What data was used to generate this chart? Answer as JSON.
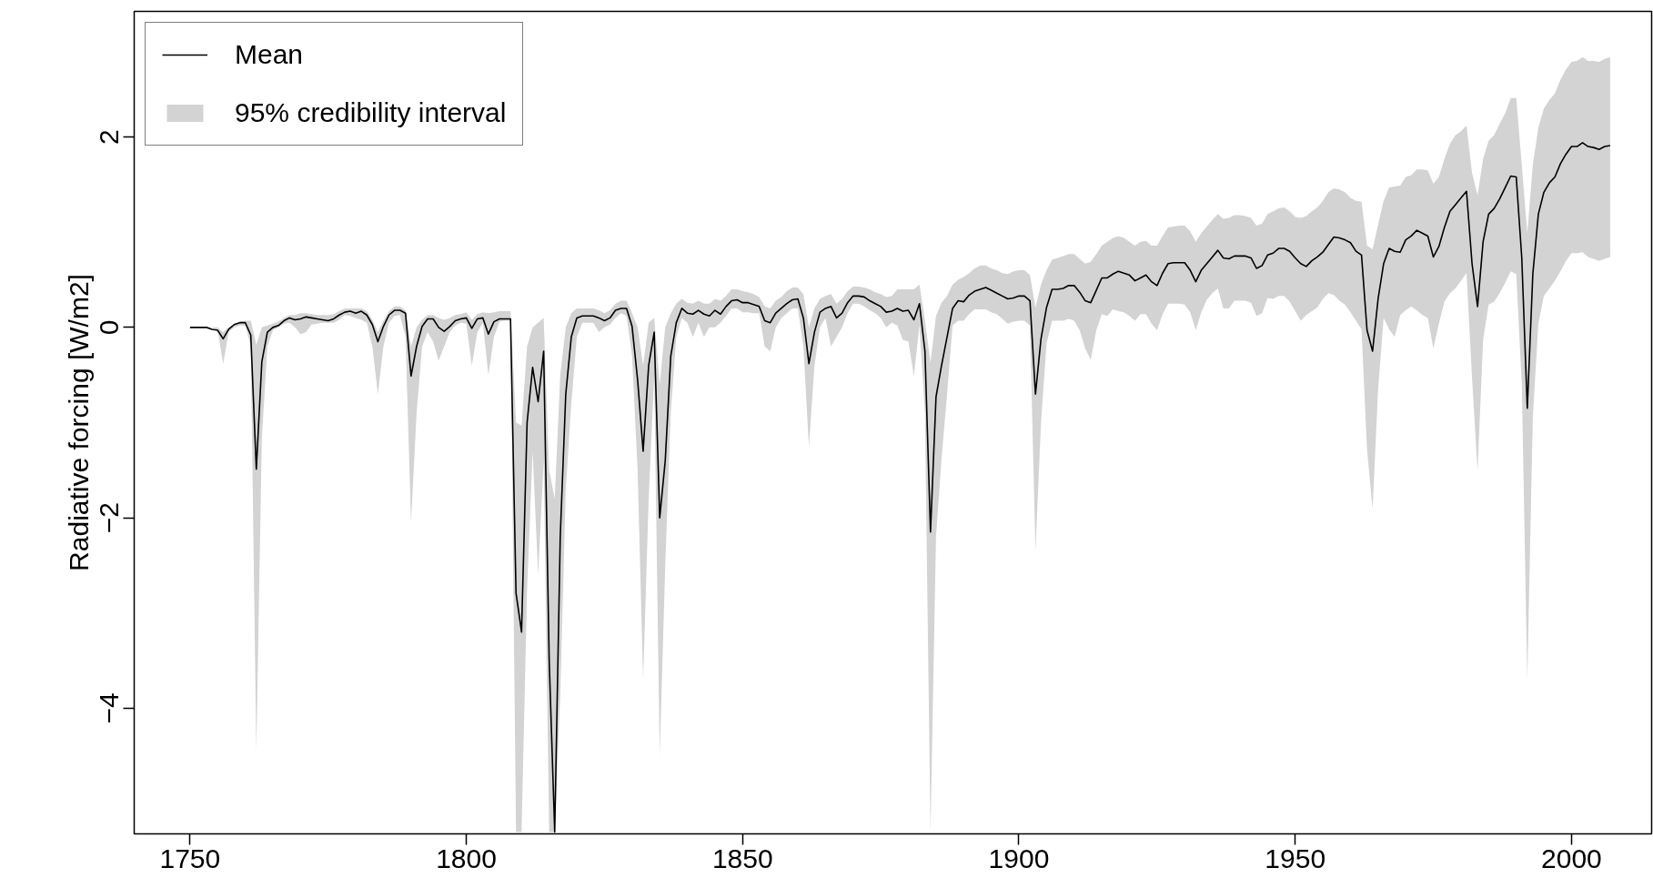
{
  "chart_data": {
    "type": "line",
    "ylabel": "Radiative forcing [W/m2]",
    "xlim": [
      1739.9,
      2014.5
    ],
    "ylim": [
      -5.32,
      3.32
    ],
    "xticks": [
      1750,
      1800,
      1850,
      1900,
      1950,
      2000
    ],
    "yticks": [
      {
        "value": -4,
        "label": "−4"
      },
      {
        "value": -2,
        "label": "−2"
      },
      0,
      2
    ],
    "grid": false,
    "legend": "top left",
    "marker": "none",
    "line_style": "solid",
    "x": [
      1750,
      1751,
      1752,
      1753,
      1754,
      1755,
      1756,
      1757,
      1758,
      1759,
      1760,
      1761,
      1762,
      1763,
      1764,
      1765,
      1766,
      1767,
      1768,
      1769,
      1770,
      1771,
      1772,
      1773,
      1774,
      1775,
      1776,
      1777,
      1778,
      1779,
      1780,
      1781,
      1782,
      1783,
      1784,
      1785,
      1786,
      1787,
      1788,
      1789,
      1790,
      1791,
      1792,
      1793,
      1794,
      1795,
      1796,
      1797,
      1798,
      1799,
      1800,
      1801,
      1802,
      1803,
      1804,
      1805,
      1806,
      1807,
      1808,
      1809,
      1810,
      1811,
      1812,
      1813,
      1814,
      1815,
      1816,
      1817,
      1818,
      1819,
      1820,
      1821,
      1822,
      1823,
      1824,
      1825,
      1826,
      1827,
      1828,
      1829,
      1830,
      1831,
      1832,
      1833,
      1834,
      1835,
      1836,
      1837,
      1838,
      1839,
      1840,
      1841,
      1842,
      1843,
      1844,
      1845,
      1846,
      1847,
      1848,
      1849,
      1850,
      1851,
      1852,
      1853,
      1854,
      1855,
      1856,
      1857,
      1858,
      1859,
      1860,
      1861,
      1862,
      1863,
      1864,
      1865,
      1866,
      1867,
      1868,
      1869,
      1870,
      1871,
      1872,
      1873,
      1874,
      1875,
      1876,
      1877,
      1878,
      1879,
      1880,
      1881,
      1882,
      1883,
      1884,
      1885,
      1886,
      1887,
      1888,
      1889,
      1890,
      1891,
      1892,
      1893,
      1894,
      1895,
      1896,
      1897,
      1898,
      1899,
      1900,
      1901,
      1902,
      1903,
      1904,
      1905,
      1906,
      1907,
      1908,
      1909,
      1910,
      1911,
      1912,
      1913,
      1914,
      1915,
      1916,
      1917,
      1918,
      1919,
      1920,
      1921,
      1922,
      1923,
      1924,
      1925,
      1926,
      1927,
      1928,
      1929,
      1930,
      1931,
      1932,
      1933,
      1934,
      1935,
      1936,
      1937,
      1938,
      1939,
      1940,
      1941,
      1942,
      1943,
      1944,
      1945,
      1946,
      1947,
      1948,
      1949,
      1950,
      1951,
      1952,
      1953,
      1954,
      1955,
      1956,
      1957,
      1958,
      1959,
      1960,
      1961,
      1962,
      1963,
      1964,
      1965,
      1966,
      1967,
      1968,
      1969,
      1970,
      1971,
      1972,
      1973,
      1974,
      1975,
      1976,
      1977,
      1978,
      1979,
      1980,
      1981,
      1982,
      1983,
      1984,
      1985,
      1986,
      1987,
      1988,
      1989,
      1990,
      1991,
      1992,
      1993,
      1994,
      1995,
      1996,
      1997,
      1998,
      1999,
      2000,
      2001,
      2002,
      2003,
      2004,
      2005,
      2006,
      2007
    ],
    "series": [
      {
        "name": "Mean",
        "color": "#000000",
        "values": [
          0,
          0,
          0,
          0,
          -0.02,
          -0.03,
          -0.12,
          -0.02,
          0.03,
          0.05,
          0.05,
          -0.08,
          -1.49,
          -0.36,
          -0.05,
          0,
          0.02,
          0.07,
          0.1,
          0.08,
          0.09,
          0.11,
          0.1,
          0.09,
          0.08,
          0.07,
          0.09,
          0.13,
          0.16,
          0.17,
          0.15,
          0.17,
          0.13,
          0.03,
          -0.15,
          0.01,
          0.13,
          0.18,
          0.18,
          0.15,
          -0.51,
          -0.2,
          0.01,
          0.09,
          0.09,
          0,
          -0.04,
          0.01,
          0.07,
          0.09,
          0.1,
          -0.01,
          0.09,
          0.1,
          -0.07,
          0.06,
          0.09,
          0.09,
          0.09,
          -2.79,
          -3.2,
          -1.0,
          -0.42,
          -0.78,
          -0.25,
          -3.5,
          -5.3,
          -2.2,
          -0.7,
          -0.1,
          0.1,
          0.12,
          0.12,
          0.12,
          0.1,
          0.07,
          0.1,
          0.18,
          0.2,
          0.2,
          0.01,
          -0.55,
          -1.3,
          -0.4,
          -0.05,
          -2.0,
          -1.4,
          -0.3,
          0.05,
          0.2,
          0.15,
          0.14,
          0.18,
          0.14,
          0.12,
          0.18,
          0.14,
          0.22,
          0.28,
          0.29,
          0.26,
          0.26,
          0.24,
          0.22,
          0.07,
          0.05,
          0.15,
          0.2,
          0.25,
          0.29,
          0.3,
          0.1,
          -0.38,
          -0.05,
          0.16,
          0.2,
          0.22,
          0.1,
          0.15,
          0.26,
          0.33,
          0.33,
          0.32,
          0.28,
          0.25,
          0.22,
          0.16,
          0.17,
          0.2,
          0.17,
          0.18,
          0.08,
          0.25,
          -0.25,
          -2.15,
          -0.73,
          -0.4,
          -0.1,
          0.2,
          0.28,
          0.27,
          0.34,
          0.38,
          0.4,
          0.42,
          0.39,
          0.36,
          0.33,
          0.3,
          0.31,
          0.33,
          0.33,
          0.28,
          -0.7,
          -0.12,
          0.21,
          0.4,
          0.4,
          0.41,
          0.44,
          0.44,
          0.37,
          0.28,
          0.26,
          0.39,
          0.52,
          0.52,
          0.56,
          0.59,
          0.57,
          0.55,
          0.49,
          0.52,
          0.55,
          0.48,
          0.44,
          0.57,
          0.67,
          0.68,
          0.68,
          0.68,
          0.6,
          0.48,
          0.6,
          0.67,
          0.74,
          0.81,
          0.73,
          0.72,
          0.75,
          0.75,
          0.75,
          0.73,
          0.62,
          0.65,
          0.76,
          0.78,
          0.83,
          0.83,
          0.8,
          0.73,
          0.67,
          0.64,
          0.7,
          0.74,
          0.79,
          0.87,
          0.95,
          0.94,
          0.92,
          0.89,
          0.8,
          0.76,
          -0.03,
          -0.25,
          0.3,
          0.67,
          0.83,
          0.8,
          0.79,
          0.92,
          0.96,
          1.02,
          0.99,
          0.96,
          0.74,
          0.85,
          1.05,
          1.22,
          1.29,
          1.36,
          1.43,
          0.67,
          0.22,
          0.9,
          1.19,
          1.25,
          1.35,
          1.47,
          1.59,
          1.58,
          0.73,
          -0.85,
          0.56,
          1.19,
          1.42,
          1.52,
          1.58,
          1.72,
          1.82,
          1.9,
          1.9,
          1.94,
          1.9,
          1.89,
          1.87,
          1.9,
          1.91
        ]
      },
      {
        "name": "95% credibility interval",
        "type": "area",
        "color": "#d3d3d3",
        "values": [
          null,
          null,
          null,
          null,
          null,
          null,
          null,
          null,
          null,
          null,
          null,
          null,
          null,
          null,
          null,
          null,
          null,
          null,
          null,
          null,
          null,
          null,
          null,
          null,
          null,
          null,
          null,
          null,
          null,
          null,
          null,
          null,
          null,
          null,
          null,
          null,
          null,
          null,
          null,
          null,
          null,
          null,
          null,
          null,
          null,
          null,
          null,
          null,
          null,
          null,
          null,
          null,
          null,
          null,
          null,
          null,
          null,
          null,
          null,
          null,
          null,
          null,
          null,
          null,
          null,
          null,
          null,
          null,
          null,
          null,
          null,
          null,
          null,
          null,
          null,
          null,
          null,
          null,
          null,
          null,
          null,
          null,
          null,
          null,
          null,
          null,
          null,
          null,
          null,
          null,
          null,
          null,
          null,
          null,
          null,
          null,
          null,
          null,
          null,
          null,
          null,
          null,
          null,
          null,
          null,
          null,
          null,
          null,
          null,
          null,
          null,
          null,
          null,
          null,
          null,
          null,
          null,
          null,
          null,
          null,
          null,
          null,
          null,
          null,
          null,
          null,
          null,
          null,
          null,
          null,
          null,
          null,
          null,
          null,
          null,
          null,
          null,
          null,
          null,
          null,
          null,
          null,
          null,
          null,
          null,
          null,
          null,
          null,
          null,
          null,
          null,
          null,
          null,
          null,
          null,
          null,
          null,
          null,
          null,
          null,
          null,
          null,
          null,
          null,
          null,
          null,
          null,
          null,
          null,
          null,
          null,
          null,
          null,
          null,
          null,
          null,
          null,
          null,
          null,
          null,
          null,
          null,
          null,
          null,
          null,
          null,
          null,
          null,
          null,
          null,
          null,
          null,
          null,
          null,
          null,
          null,
          null,
          null,
          null,
          null,
          null,
          null,
          null,
          null,
          null,
          null,
          null,
          null,
          null,
          null,
          null,
          null,
          null,
          null,
          null,
          null,
          null,
          null,
          null,
          null,
          null,
          null,
          null,
          null,
          null,
          null,
          null,
          null,
          null,
          null,
          null,
          null,
          null,
          null,
          null,
          null,
          null,
          null,
          null,
          null,
          null,
          null,
          null,
          null,
          null,
          null,
          null,
          null,
          null,
          null,
          null,
          null,
          null,
          null,
          null,
          null,
          null,
          null
        ],
        "upper": [
          0,
          0,
          0,
          0,
          0,
          0,
          -0.05,
          0,
          0.04,
          0.06,
          0.07,
          0.07,
          -0.18,
          0,
          0.02,
          0.04,
          0.06,
          0.1,
          0.13,
          0.13,
          0.15,
          0.15,
          0.14,
          0.13,
          0.13,
          0.13,
          0.14,
          0.17,
          0.2,
          0.2,
          0.2,
          0.2,
          0.17,
          0.08,
          -0.05,
          0.07,
          0.17,
          0.22,
          0.22,
          0.18,
          -0.2,
          0,
          0.08,
          0.13,
          0.13,
          0.1,
          0.08,
          0.1,
          0.13,
          0.14,
          0.16,
          0.08,
          0.14,
          0.16,
          0.15,
          0.16,
          0.17,
          0.17,
          0.17,
          -1.0,
          -1.03,
          -0.2,
          0,
          0.05,
          0.1,
          -1.5,
          -1.8,
          -0.5,
          0,
          0.15,
          0.2,
          0.2,
          0.2,
          0.2,
          0.18,
          0.15,
          0.18,
          0.25,
          0.28,
          0.28,
          0.15,
          0,
          -0.4,
          0.05,
          0.1,
          -0.6,
          0,
          0.15,
          0.25,
          0.3,
          0.26,
          0.25,
          0.28,
          0.25,
          0.25,
          0.3,
          0.28,
          0.33,
          0.4,
          0.4,
          0.38,
          0.37,
          0.35,
          0.32,
          0.22,
          0.2,
          0.28,
          0.32,
          0.38,
          0.42,
          0.42,
          0.35,
          0,
          0.2,
          0.3,
          0.33,
          0.35,
          0.25,
          0.3,
          0.38,
          0.43,
          0.43,
          0.42,
          0.4,
          0.37,
          0.35,
          0.32,
          0.33,
          0.4,
          0.4,
          0.4,
          0.4,
          0.45,
          0.07,
          -0.37,
          0.12,
          0.26,
          0.33,
          0.45,
          0.5,
          0.53,
          0.57,
          0.62,
          0.65,
          0.65,
          0.62,
          0.6,
          0.57,
          0.56,
          0.59,
          0.6,
          0.6,
          0.55,
          0.21,
          0.45,
          0.6,
          0.71,
          0.73,
          0.75,
          0.77,
          0.77,
          0.72,
          0.67,
          0.69,
          0.77,
          0.86,
          0.9,
          0.94,
          0.96,
          0.94,
          0.9,
          0.86,
          0.9,
          0.91,
          0.86,
          0.86,
          0.96,
          1.05,
          1.06,
          1.07,
          1.07,
          1.01,
          0.9,
          0.99,
          1.06,
          1.13,
          1.19,
          1.14,
          1.15,
          1.18,
          1.18,
          1.17,
          1.15,
          1.07,
          1.09,
          1.19,
          1.22,
          1.25,
          1.26,
          1.22,
          1.16,
          1.15,
          1.17,
          1.22,
          1.26,
          1.33,
          1.42,
          1.46,
          1.45,
          1.42,
          1.36,
          1.33,
          1.32,
          0.86,
          0.82,
          1.08,
          1.33,
          1.47,
          1.48,
          1.49,
          1.58,
          1.6,
          1.66,
          1.66,
          1.65,
          1.51,
          1.58,
          1.77,
          1.93,
          2.02,
          2.06,
          2.12,
          1.62,
          1.39,
          1.77,
          1.96,
          2.02,
          2.14,
          2.25,
          2.41,
          2.41,
          1.71,
          0.99,
          1.71,
          2.1,
          2.3,
          2.39,
          2.46,
          2.6,
          2.71,
          2.79,
          2.8,
          2.84,
          2.8,
          2.8,
          2.79,
          2.82,
          2.84
        ],
        "lower": [
          0,
          0,
          0,
          0,
          0,
          -0.03,
          -0.38,
          -0.05,
          0,
          0.02,
          0.02,
          -0.2,
          -4.45,
          -1.17,
          -0.2,
          -0.03,
          0,
          0.04,
          0.05,
          0,
          -0.07,
          -0.05,
          0.03,
          0.04,
          0.05,
          0.05,
          0.05,
          0.08,
          0.13,
          0.12,
          0.1,
          0.08,
          0.05,
          -0.2,
          -0.7,
          -0.2,
          0.05,
          0.12,
          0.13,
          -0.1,
          -2.05,
          -0.9,
          -0.2,
          -0.05,
          -0.15,
          -0.35,
          -0.2,
          -0.05,
          0.02,
          0.05,
          0.04,
          -0.4,
          -0.05,
          0.05,
          -0.5,
          -0.1,
          0.06,
          0.07,
          0.07,
          -5.3,
          -5.3,
          -2.75,
          -1.3,
          -2.6,
          -1.4,
          -5.3,
          -5.3,
          -3.86,
          -1.7,
          -0.8,
          -0.1,
          0.05,
          0.05,
          0.05,
          -0.05,
          0,
          0.03,
          0.1,
          0.15,
          0.12,
          -0.3,
          -1.5,
          -3.7,
          -1.8,
          -0.5,
          -4.5,
          -2.5,
          -0.9,
          -0.1,
          0.1,
          0.05,
          -0.1,
          0.05,
          -0.1,
          0,
          0,
          0.05,
          0.12,
          0.2,
          0.2,
          0.16,
          0.16,
          0.15,
          0.15,
          -0.2,
          -0.25,
          0,
          0.1,
          0.15,
          0.2,
          0.2,
          -0.2,
          -1.25,
          -0.4,
          0,
          0.1,
          -0.2,
          -0.1,
          0,
          0.15,
          0.25,
          0.25,
          0.22,
          0.18,
          0.15,
          0.1,
          0,
          0.05,
          0.02,
          -0.13,
          -0.15,
          -0.51,
          0.02,
          -0.9,
          -5.3,
          -2.2,
          -1.38,
          -0.7,
          0.02,
          0.07,
          0.07,
          0.14,
          0.19,
          0.19,
          0.19,
          0.16,
          0.14,
          0.09,
          0.04,
          0.06,
          0.07,
          0.07,
          0.02,
          -2.35,
          -1.0,
          -0.17,
          0.07,
          0.07,
          0.07,
          0.09,
          0.07,
          -0.03,
          -0.22,
          -0.34,
          -0.03,
          0.14,
          0.12,
          0.19,
          0.17,
          0.16,
          0.12,
          0.07,
          0.14,
          0.14,
          0.04,
          -0.03,
          0.14,
          0.25,
          0.25,
          0.25,
          0.24,
          0.16,
          -0.03,
          0.16,
          0.29,
          0.36,
          0.41,
          0.2,
          0.2,
          0.28,
          0.28,
          0.28,
          0.26,
          0.12,
          0.15,
          0.31,
          0.3,
          0.33,
          0.33,
          0.27,
          0.17,
          0.07,
          0.13,
          0.17,
          0.21,
          0.3,
          0.36,
          0.34,
          0.28,
          0.24,
          0.16,
          0.07,
          -0.02,
          -1.28,
          -1.91,
          -0.65,
          0.1,
          -0.02,
          -0.1,
          0.13,
          0.18,
          0.22,
          0.18,
          0.13,
          0.1,
          -0.22,
          0.04,
          0.27,
          0.36,
          0.41,
          0.49,
          0.57,
          -0.53,
          -1.51,
          -0.13,
          0.24,
          0.27,
          0.36,
          0.47,
          0.59,
          0.56,
          -0.59,
          -3.7,
          -0.94,
          0.04,
          0.33,
          0.41,
          0.49,
          0.59,
          0.7,
          0.78,
          0.78,
          0.79,
          0.74,
          0.72,
          0.7,
          0.72,
          0.74
        ]
      }
    ]
  }
}
